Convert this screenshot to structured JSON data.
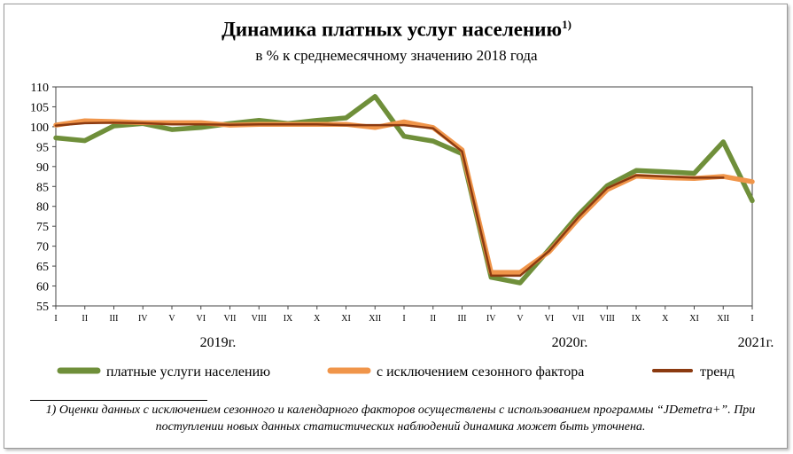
{
  "title": "Динамика платных услуг населению",
  "title_note": "1)",
  "subtitle": "в % к среднемесячному значению 2018 года",
  "footnote": "1) Оценки данных с исключением сезонного и календарного факторов осуществлены с использованием программы “JDemetra+”. При поступлении новых данных статистических наблюдений динамика может быть уточнена.",
  "chart_data": {
    "type": "line",
    "x": [
      "I",
      "II",
      "III",
      "IV",
      "V",
      "VI",
      "VII",
      "VIII",
      "IX",
      "X",
      "XI",
      "XII",
      "I",
      "II",
      "III",
      "IV",
      "V",
      "VI",
      "VII",
      "VIII",
      "IX",
      "X",
      "XI",
      "XII",
      "I"
    ],
    "year_labels": [
      "2019г.",
      "2020г.",
      "2021г."
    ],
    "ylim": [
      55,
      110
    ],
    "yticks": [
      55,
      60,
      65,
      70,
      75,
      80,
      85,
      90,
      95,
      100,
      105,
      110
    ],
    "grid": false,
    "legend_position": "bottom",
    "series": [
      {
        "name": "платные  услуги населению",
        "color": "#6f8f3a",
        "width": 5.5,
        "values": [
          97.2,
          96.5,
          100.2,
          100.8,
          99.3,
          99.8,
          100.8,
          101.6,
          100.8,
          101.6,
          102.2,
          107.6,
          97.6,
          96.4,
          93.2,
          62.2,
          60.8,
          69.2,
          77.8,
          85.2,
          89.0,
          88.7,
          88.3,
          96.2,
          81.4
        ]
      },
      {
        "name": "с исключением  сезонного фактора",
        "color": "#f0954a",
        "width": 5.5,
        "values": [
          100.4,
          101.5,
          101.3,
          101.0,
          101.0,
          101.0,
          100.4,
          100.6,
          100.6,
          100.6,
          100.6,
          99.8,
          101.2,
          99.8,
          94.2,
          63.4,
          63.4,
          68.6,
          76.8,
          84.2,
          87.6,
          87.2,
          87.0,
          87.5,
          86.2
        ]
      },
      {
        "name": "тренд",
        "color": "#8b3a10",
        "width": 2.5,
        "values": [
          100.3,
          100.9,
          101.0,
          100.9,
          100.6,
          100.6,
          100.5,
          100.6,
          100.6,
          100.6,
          100.4,
          100.4,
          100.4,
          99.6,
          93.8,
          62.6,
          62.6,
          68.8,
          77.2,
          84.6,
          87.8,
          87.5,
          87.2,
          87.2,
          null
        ]
      }
    ]
  }
}
